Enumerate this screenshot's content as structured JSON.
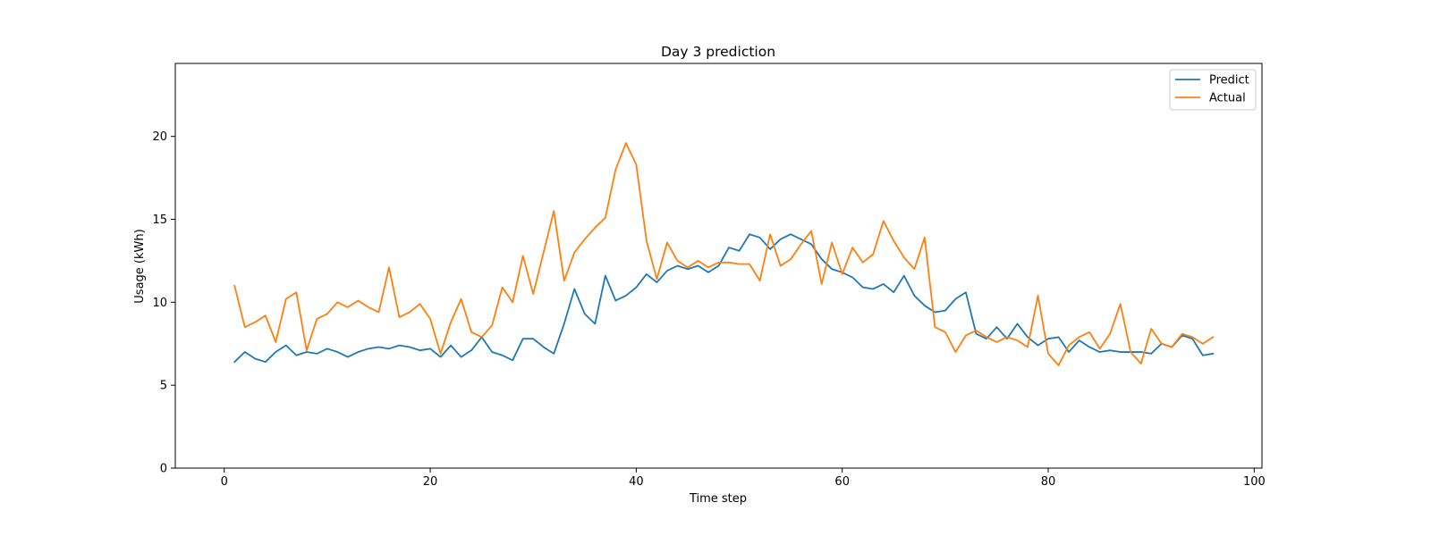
{
  "chart_data": {
    "type": "line",
    "title": "Day 3 prediction",
    "xlabel": "Time step",
    "ylabel": "Usage (kWh)",
    "xlim": [
      -4.75,
      100.75
    ],
    "ylim": [
      0,
      24.4
    ],
    "xticks": [
      0,
      20,
      40,
      60,
      80,
      100
    ],
    "yticks": [
      0,
      5,
      10,
      15,
      20
    ],
    "grid": false,
    "legend_position": "top-right",
    "x": [
      1,
      2,
      3,
      4,
      5,
      6,
      7,
      8,
      9,
      10,
      11,
      12,
      13,
      14,
      15,
      16,
      17,
      18,
      19,
      20,
      21,
      22,
      23,
      24,
      25,
      26,
      27,
      28,
      29,
      30,
      31,
      32,
      33,
      34,
      35,
      36,
      37,
      38,
      39,
      40,
      41,
      42,
      43,
      44,
      45,
      46,
      47,
      48,
      49,
      50,
      51,
      52,
      53,
      54,
      55,
      56,
      57,
      58,
      59,
      60,
      61,
      62,
      63,
      64,
      65,
      66,
      67,
      68,
      69,
      70,
      71,
      72,
      73,
      74,
      75,
      76,
      77,
      78,
      79,
      80,
      81,
      82,
      83,
      84,
      85,
      86,
      87,
      88,
      89,
      90,
      91,
      92,
      93,
      94,
      95,
      96
    ],
    "series": [
      {
        "name": "Predict",
        "color": "#1f77b4",
        "values": [
          6.4,
          7.0,
          6.6,
          6.4,
          7.0,
          7.4,
          6.8,
          7.0,
          6.9,
          7.2,
          7.0,
          6.7,
          7.0,
          7.2,
          7.3,
          7.2,
          7.4,
          7.3,
          7.1,
          7.2,
          6.7,
          7.4,
          6.7,
          7.1,
          7.9,
          7.0,
          6.8,
          6.5,
          7.8,
          7.8,
          7.3,
          6.9,
          8.7,
          10.8,
          9.3,
          8.7,
          11.6,
          10.1,
          10.4,
          10.9,
          11.7,
          11.2,
          11.9,
          12.2,
          12.0,
          12.2,
          11.8,
          12.2,
          13.3,
          13.1,
          14.1,
          13.9,
          13.2,
          13.8,
          14.1,
          13.8,
          13.5,
          12.6,
          12.0,
          11.8,
          11.5,
          10.9,
          10.8,
          11.1,
          10.6,
          11.6,
          10.4,
          9.8,
          9.4,
          9.5,
          10.2,
          10.6,
          8.1,
          7.8,
          8.5,
          7.8,
          8.7,
          7.9,
          7.4,
          7.8,
          7.9,
          7.0,
          7.7,
          7.3,
          7.0,
          7.1,
          7.0,
          7.0,
          7.0,
          6.9,
          7.5,
          7.3,
          8.0,
          7.8,
          6.8,
          6.9
        ]
      },
      {
        "name": "Actual",
        "color": "#ff7f0e",
        "values": [
          11.0,
          8.5,
          8.8,
          9.2,
          7.6,
          10.2,
          10.6,
          7.1,
          9.0,
          9.3,
          10.0,
          9.7,
          10.1,
          9.7,
          9.4,
          12.1,
          9.1,
          9.4,
          9.9,
          9.0,
          6.9,
          8.8,
          10.2,
          8.2,
          7.9,
          8.6,
          10.9,
          10.0,
          12.8,
          10.5,
          13.0,
          15.5,
          11.3,
          13.0,
          13.8,
          14.5,
          15.1,
          18.0,
          19.6,
          18.3,
          13.7,
          11.4,
          13.6,
          12.5,
          12.1,
          12.5,
          12.1,
          12.4,
          12.4,
          12.3,
          12.3,
          11.3,
          14.1,
          12.2,
          12.6,
          13.5,
          14.3,
          11.1,
          13.6,
          11.7,
          13.3,
          12.4,
          12.9,
          14.9,
          13.7,
          12.7,
          12.0,
          13.9,
          8.5,
          8.2,
          7.0,
          8.0,
          8.3,
          7.9,
          7.6,
          7.9,
          7.7,
          7.3,
          10.4,
          6.9,
          6.2,
          7.4,
          7.9,
          8.2,
          7.2,
          8.1,
          9.9,
          7.0,
          6.3,
          8.4,
          7.5,
          7.3,
          8.1,
          7.9,
          7.5,
          7.9
        ]
      }
    ]
  }
}
